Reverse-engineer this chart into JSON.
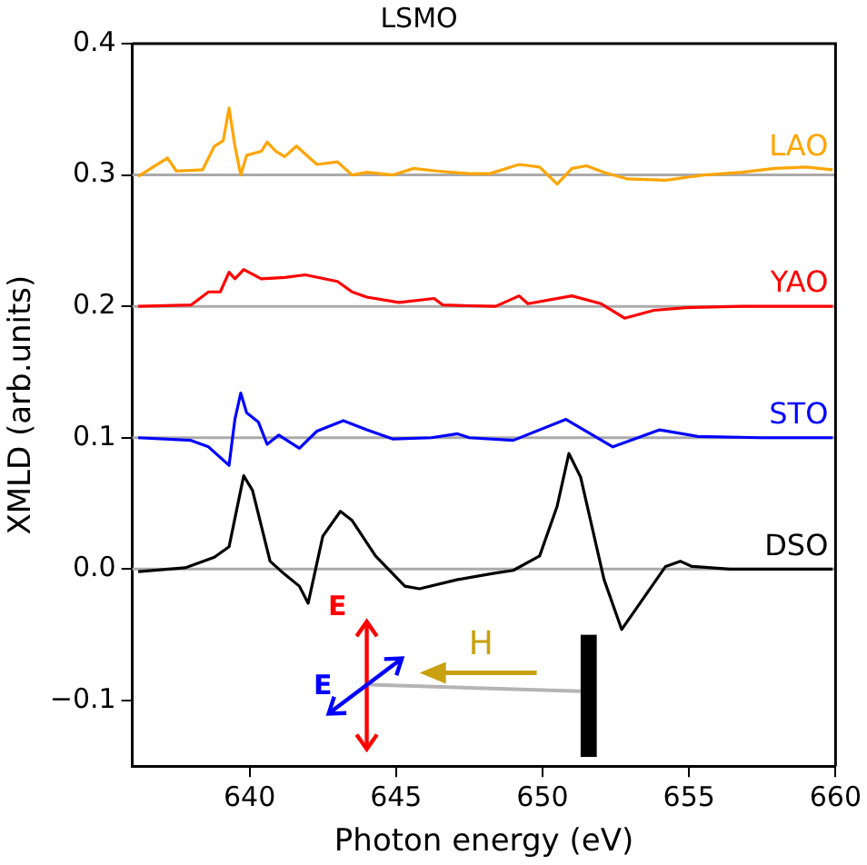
{
  "chart_data": {
    "type": "line",
    "title": "LSMO",
    "xlabel": "Photon energy (eV)",
    "ylabel": "XMLD (arb.units)",
    "xlim": [
      636,
      660
    ],
    "xticks": [
      640,
      645,
      650,
      655,
      660
    ],
    "ylim": [
      -0.15,
      0.4
    ],
    "yticks": [
      {
        "value": -0.1,
        "label": "−0.1"
      },
      {
        "value": 0,
        "label": "0.0"
      },
      0.1,
      0.2,
      0.3,
      0.4
    ],
    "grid": false,
    "legend": false,
    "marker": "none",
    "line_style": "solid",
    "ref_lines": [
      {
        "axis": "y",
        "value": 0.3,
        "color": "#aaaaaa"
      },
      {
        "axis": "y",
        "value": 0.2,
        "color": "#aaaaaa"
      },
      {
        "axis": "y",
        "value": 0.1,
        "color": "#aaaaaa"
      },
      {
        "axis": "y",
        "value": 0,
        "color": "#aaaaaa"
      }
    ],
    "annotations": [
      "E",
      "E",
      "H"
    ],
    "series": [
      {
        "name": "LAO",
        "color": "#ffa500",
        "x": [
          636.2,
          637.2,
          637.5,
          638.4,
          638.8,
          639.1,
          639.3,
          639.5,
          639.7,
          639.9,
          640.4,
          640.6,
          640.9,
          641.2,
          641.6,
          641.9,
          642.3,
          643.0,
          643.5,
          644.0,
          644.9,
          645.6,
          646.4,
          647.5,
          648.2,
          649.2,
          649.9,
          650.5,
          651.0,
          651.5,
          652.1,
          652.9,
          654.2,
          655.5,
          656.8,
          657.9,
          659.0,
          659.9
        ],
        "values": [
          0.299,
          0.313,
          0.303,
          0.304,
          0.322,
          0.326,
          0.351,
          0.322,
          0.3,
          0.315,
          0.318,
          0.325,
          0.318,
          0.314,
          0.322,
          0.316,
          0.308,
          0.31,
          0.3,
          0.302,
          0.3,
          0.305,
          0.303,
          0.301,
          0.301,
          0.308,
          0.306,
          0.293,
          0.305,
          0.307,
          0.302,
          0.297,
          0.296,
          0.3,
          0.302,
          0.305,
          0.306,
          0.304
        ]
      },
      {
        "name": "YAO",
        "color": "#ff0000",
        "x": [
          636.2,
          638.0,
          638.6,
          639.0,
          639.3,
          639.5,
          639.8,
          640.4,
          641.2,
          641.9,
          643.0,
          643.5,
          644.0,
          645.1,
          646.3,
          646.6,
          648.4,
          649.2,
          649.5,
          651.0,
          652.0,
          652.8,
          653.8,
          654.9,
          656.8,
          659.9
        ],
        "values": [
          0.2,
          0.201,
          0.211,
          0.211,
          0.226,
          0.221,
          0.228,
          0.221,
          0.222,
          0.224,
          0.219,
          0.211,
          0.207,
          0.203,
          0.206,
          0.201,
          0.2,
          0.208,
          0.202,
          0.208,
          0.202,
          0.191,
          0.197,
          0.199,
          0.2,
          0.2
        ]
      },
      {
        "name": "STO",
        "color": "#0000ff",
        "x": [
          636.2,
          638.0,
          638.6,
          639.3,
          639.5,
          639.7,
          639.9,
          640.3,
          640.6,
          641.0,
          641.7,
          642.3,
          643.2,
          644.0,
          644.9,
          646.2,
          647.1,
          647.5,
          649.0,
          650.8,
          652.4,
          654.0,
          655.3,
          657.5,
          659.9
        ],
        "values": [
          0.1,
          0.098,
          0.093,
          0.079,
          0.114,
          0.134,
          0.119,
          0.112,
          0.095,
          0.102,
          0.092,
          0.105,
          0.113,
          0.106,
          0.099,
          0.1,
          0.103,
          0.1,
          0.098,
          0.114,
          0.093,
          0.106,
          0.101,
          0.1,
          0.1
        ]
      },
      {
        "name": "DSO",
        "color": "#000000",
        "x": [
          636.2,
          637.8,
          638.8,
          639.3,
          639.8,
          640.1,
          640.7,
          641.2,
          641.7,
          642.0,
          642.5,
          643.1,
          643.5,
          644.3,
          645.3,
          645.8,
          647.1,
          648.4,
          649.0,
          649.9,
          650.5,
          650.9,
          651.3,
          652.1,
          652.7,
          654.2,
          654.7,
          655.1,
          656.4,
          659.9
        ],
        "values": [
          -0.002,
          0.001,
          0.009,
          0.017,
          0.071,
          0.06,
          0.006,
          -0.004,
          -0.013,
          -0.026,
          0.025,
          0.044,
          0.037,
          0.01,
          -0.013,
          -0.015,
          -0.008,
          -0.003,
          -0.001,
          0.01,
          0.048,
          0.088,
          0.07,
          -0.008,
          -0.046,
          0.002,
          0.006,
          0.002,
          0,
          0
        ]
      }
    ]
  }
}
